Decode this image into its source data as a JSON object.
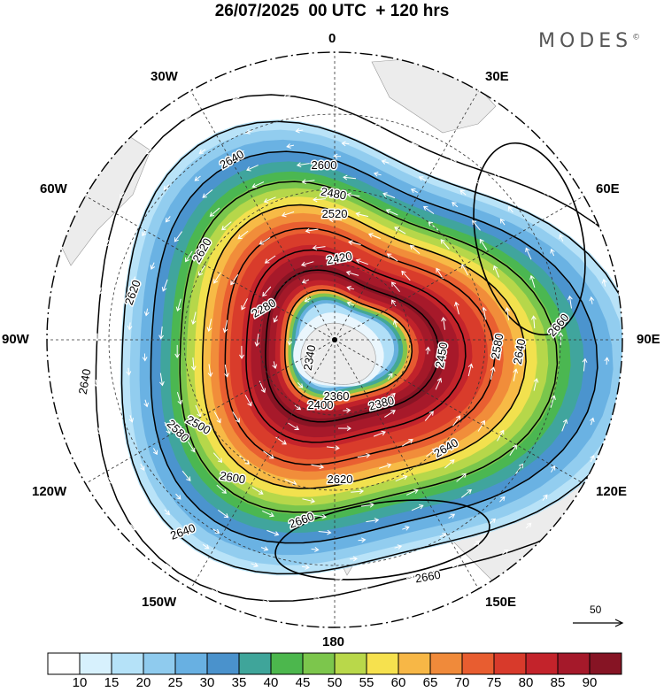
{
  "header": {
    "title": "26/07/2025  00 UTC  + 120 hrs",
    "brand": "MODES",
    "brand_mark": "©"
  },
  "map": {
    "projection": "south polar stereographic",
    "longitude_labels": [
      "0",
      "30E",
      "60E",
      "90E",
      "120E",
      "150E",
      "180",
      "150W",
      "120W",
      "90W",
      "60W",
      "30W"
    ],
    "contour_labels": [
      "2280",
      "2340",
      "2360",
      "2380",
      "2400",
      "2420",
      "2450",
      "2480",
      "2500",
      "2520",
      "2580",
      "2600",
      "2620",
      "2640",
      "2660"
    ],
    "contour_levels": [
      2280,
      2340,
      2400,
      2460,
      2520,
      2580,
      2620,
      2640,
      2660
    ],
    "colors": {
      "land": "#ececec",
      "contour": "#000000",
      "vectors": "#ffffff"
    }
  },
  "vector_reference": {
    "label": "50",
    "icon": "right-arrow-icon"
  },
  "colorbar": {
    "tick_labels": [
      "10",
      "15",
      "20",
      "25",
      "30",
      "35",
      "40",
      "45",
      "50",
      "55",
      "60",
      "65",
      "70",
      "75",
      "80",
      "85",
      "90"
    ],
    "colors": [
      "#ffffff",
      "#d7f1fd",
      "#b5e2f8",
      "#8fcbee",
      "#68b0e2",
      "#4a92cc",
      "#3fa59a",
      "#4cb74d",
      "#7cc64c",
      "#b9d84a",
      "#f6e14e",
      "#f7b746",
      "#f08a3a",
      "#e85d30",
      "#d83a2b",
      "#c3232b",
      "#a5192a",
      "#861424"
    ]
  }
}
